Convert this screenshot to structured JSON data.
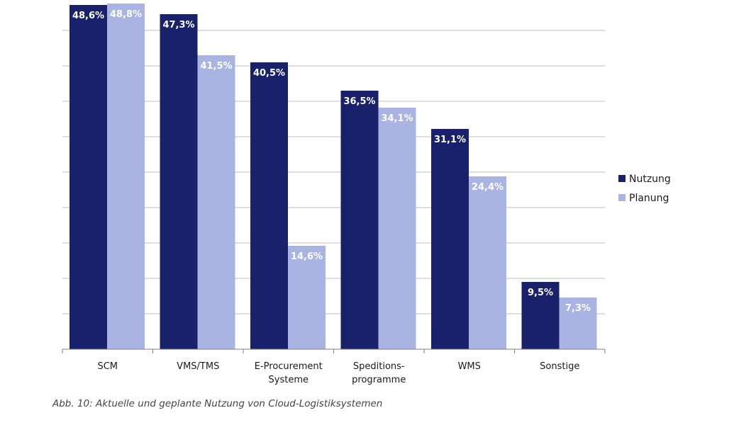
{
  "caption": "Abb. 10: Aktuelle und geplante Nutzung von Cloud-Logistiksystemen",
  "chart_data": {
    "type": "bar",
    "title": "",
    "xlabel": "",
    "ylabel": "",
    "ylim": [
      0,
      50
    ],
    "grid": true,
    "legend_position": "right",
    "categories": [
      [
        "SCM"
      ],
      [
        "VMS/TMS"
      ],
      [
        "E-Procurement",
        "Systeme"
      ],
      [
        "Speditions-",
        "programme"
      ],
      [
        "WMS"
      ],
      [
        "Sonstige"
      ]
    ],
    "series": [
      {
        "name": "Nutzung",
        "color": "#18216a",
        "values": [
          48.6,
          47.3,
          40.5,
          36.5,
          31.1,
          9.5
        ],
        "labels": [
          "48,6%",
          "47,3%",
          "40,5%",
          "36,5%",
          "31,1%",
          "9,5%"
        ]
      },
      {
        "name": "Planung",
        "color": "#a9b4e3",
        "values": [
          48.8,
          41.5,
          14.6,
          34.1,
          24.4,
          7.3
        ],
        "labels": [
          "48,8%",
          "41,5%",
          "14,6%",
          "34,1%",
          "24,4%",
          "7,3%"
        ]
      }
    ]
  }
}
